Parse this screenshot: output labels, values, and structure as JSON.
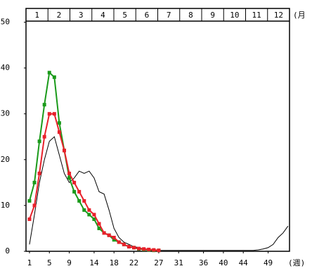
{
  "chart_data": {
    "type": "line",
    "x": [
      1,
      2,
      3,
      4,
      5,
      6,
      7,
      8,
      9,
      10,
      11,
      12,
      13,
      14,
      15,
      16,
      17,
      18,
      19,
      20,
      21,
      22,
      23,
      24,
      25,
      26,
      27,
      28,
      29,
      30,
      31,
      32,
      33,
      34,
      35,
      36,
      37,
      38,
      39,
      40,
      41,
      42,
      43,
      44,
      45,
      46,
      47,
      48,
      49,
      50,
      51,
      52,
      53
    ],
    "series": [
      {
        "color": "#000000",
        "markers": false,
        "values": [
          1.5,
          8,
          15,
          20,
          24,
          25,
          21,
          17,
          15,
          16,
          17.5,
          17,
          17.5,
          16,
          13,
          12.5,
          9,
          5,
          3,
          2,
          1.5,
          1,
          0.8,
          0.5,
          0.3,
          0.2,
          0.2,
          0.2,
          0.2,
          0.2,
          0.2,
          0.2,
          0.2,
          0.2,
          0.2,
          0.2,
          0.2,
          0.2,
          0.2,
          0.2,
          0.2,
          0.2,
          0.2,
          0.2,
          0.2,
          0.2,
          0.3,
          0.5,
          0.8,
          1.5,
          3,
          4,
          5.5
        ]
      },
      {
        "color": "#1a9a1a",
        "markers": true,
        "values": [
          11,
          15,
          24,
          32,
          39,
          38,
          28,
          22,
          16,
          13,
          11,
          9,
          8,
          7,
          5,
          4,
          3.5,
          2.5,
          2,
          1.5,
          1,
          0.8,
          0.5,
          0.4,
          0.3,
          0.2,
          0.2,
          null,
          null,
          null,
          null,
          null,
          null,
          null,
          null,
          null,
          null,
          null,
          null,
          null,
          null,
          null,
          null,
          null,
          null,
          null,
          null,
          null,
          null,
          null,
          null,
          null,
          null
        ]
      },
      {
        "color": "#e8202a",
        "markers": true,
        "values": [
          7,
          10,
          17,
          25,
          30,
          30,
          26,
          22,
          17,
          15,
          13,
          11,
          9,
          8,
          6,
          4,
          3.5,
          3,
          2,
          1.5,
          1,
          0.8,
          0.6,
          0.5,
          0.4,
          0.3,
          0.2,
          null,
          null,
          null,
          null,
          null,
          null,
          null,
          null,
          null,
          null,
          null,
          null,
          null,
          null,
          null,
          null,
          null,
          null,
          null,
          null,
          null,
          null,
          null,
          null,
          null,
          null
        ]
      }
    ],
    "xlim": [
      0.3,
      53.3
    ],
    "xticks": [
      1,
      5,
      9,
      14,
      18,
      22,
      27,
      31,
      36,
      40,
      44,
      49
    ],
    "ylim": [
      0,
      53
    ],
    "yticks": [
      0,
      10,
      20,
      30,
      40,
      50
    ],
    "x_label": "(週)",
    "months": [
      1,
      2,
      3,
      4,
      5,
      6,
      7,
      8,
      9,
      10,
      11,
      12
    ],
    "months_label": "(月"
  }
}
